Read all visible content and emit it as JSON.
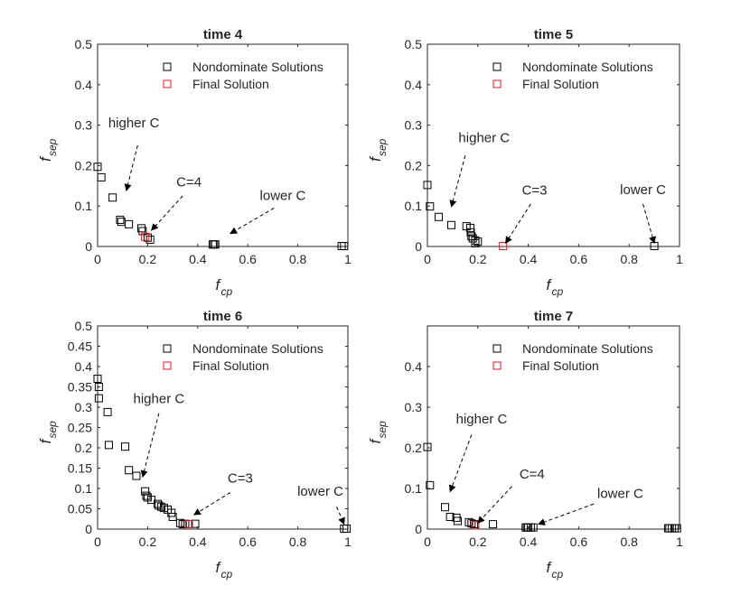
{
  "chart_data": [
    {
      "type": "scatter",
      "title": "time 4",
      "xlabel": "f",
      "xlabel_sub": "cp",
      "ylabel": "f",
      "ylabel_sub": "sep",
      "xlim": [
        0,
        1
      ],
      "ylim": [
        0,
        0.5
      ],
      "xticks": [
        "0",
        "0.2",
        "0.4",
        "0.6",
        "0.8",
        "1"
      ],
      "yticks": [
        "0",
        "0.1",
        "0.2",
        "0.3",
        "0.4",
        "0.5"
      ],
      "legend": [
        "Nondominate Solutions",
        "Final Solution"
      ],
      "series": [
        {
          "name": "Nondominate Solutions",
          "color": "#000000",
          "x": [
            0.0,
            0.015,
            0.06,
            0.09,
            0.095,
            0.125,
            0.175,
            0.18,
            0.2,
            0.21,
            0.46,
            0.465,
            0.47,
            0.975,
            0.985
          ],
          "y": [
            0.197,
            0.171,
            0.121,
            0.066,
            0.061,
            0.055,
            0.045,
            0.038,
            0.022,
            0.017,
            0.005,
            0.005,
            0.005,
            0.001,
            0.001
          ]
        },
        {
          "name": "Final Solution",
          "color": "#e31a1c",
          "x": [
            0.19
          ],
          "y": [
            0.024
          ]
        }
      ],
      "annotations": [
        {
          "text": "higher C",
          "text_at": [
            0.145,
            0.295
          ],
          "arrow_from": [
            0.16,
            0.25
          ],
          "arrow_to": [
            0.115,
            0.138
          ]
        },
        {
          "text": "C=4",
          "text_at": [
            0.365,
            0.148
          ],
          "arrow_from": [
            0.34,
            0.125
          ],
          "arrow_to": [
            0.215,
            0.04
          ]
        },
        {
          "text": "lower C",
          "text_at": [
            0.74,
            0.115
          ],
          "arrow_from": [
            0.705,
            0.095
          ],
          "arrow_to": [
            0.53,
            0.032
          ]
        }
      ]
    },
    {
      "type": "scatter",
      "title": "time 5",
      "xlabel": "f",
      "xlabel_sub": "cp",
      "ylabel": "f",
      "ylabel_sub": "sep",
      "xlim": [
        0,
        1
      ],
      "ylim": [
        0,
        0.5
      ],
      "xticks": [
        "0",
        "0.2",
        "0.4",
        "0.6",
        "0.8",
        "1"
      ],
      "yticks": [
        "0",
        "0.1",
        "0.2",
        "0.3",
        "0.4",
        "0.5"
      ],
      "legend": [
        "Nondominate Solutions",
        "Final Solution"
      ],
      "series": [
        {
          "name": "Nondominate Solutions",
          "color": "#000000",
          "x": [
            0.0,
            0.01,
            0.045,
            0.095,
            0.155,
            0.17,
            0.172,
            0.175,
            0.18,
            0.19,
            0.19,
            0.2,
            0.9
          ],
          "y": [
            0.152,
            0.099,
            0.073,
            0.053,
            0.05,
            0.046,
            0.035,
            0.025,
            0.02,
            0.015,
            0.008,
            0.012,
            0.001
          ]
        },
        {
          "name": "Final Solution",
          "color": "#e31a1c",
          "x": [
            0.3
          ],
          "y": [
            0.001
          ]
        }
      ],
      "annotations": [
        {
          "text": "higher C",
          "text_at": [
            0.225,
            0.258
          ],
          "arrow_from": [
            0.15,
            0.225
          ],
          "arrow_to": [
            0.095,
            0.098
          ]
        },
        {
          "text": "C=3",
          "text_at": [
            0.425,
            0.128
          ],
          "arrow_from": [
            0.41,
            0.105
          ],
          "arrow_to": [
            0.31,
            0.008
          ]
        },
        {
          "text": "lower C",
          "text_at": [
            0.855,
            0.13
          ],
          "arrow_from": [
            0.855,
            0.105
          ],
          "arrow_to": [
            0.9,
            0.008
          ]
        }
      ]
    },
    {
      "type": "scatter",
      "title": "time 6",
      "xlabel": "f",
      "xlabel_sub": "cp",
      "ylabel": "f",
      "ylabel_sub": "sep",
      "xlim": [
        0,
        1
      ],
      "ylim": [
        0,
        0.5
      ],
      "xticks": [
        "0",
        "0.2",
        "0.4",
        "0.6",
        "0.8",
        "1"
      ],
      "yticks": [
        "0",
        "0.05",
        "0.1",
        "0.15",
        "0.2",
        "0.25",
        "0.3",
        "0.35",
        "0.4",
        "0.45",
        "0.5"
      ],
      "legend": [
        "Nondominate Solutions",
        "Final Solution"
      ],
      "series": [
        {
          "name": "Nondominate Solutions",
          "color": "#000000",
          "x": [
            0.0,
            0.005,
            0.005,
            0.04,
            0.045,
            0.11,
            0.125,
            0.155,
            0.19,
            0.195,
            0.2,
            0.215,
            0.24,
            0.245,
            0.255,
            0.265,
            0.28,
            0.295,
            0.3,
            0.33,
            0.34,
            0.35,
            0.39,
            0.985,
            0.995
          ],
          "y": [
            0.37,
            0.35,
            0.322,
            0.288,
            0.207,
            0.203,
            0.145,
            0.131,
            0.093,
            0.082,
            0.078,
            0.072,
            0.062,
            0.058,
            0.055,
            0.052,
            0.048,
            0.04,
            0.03,
            0.015,
            0.012,
            0.013,
            0.013,
            0.001,
            0.001
          ]
        },
        {
          "name": "Final Solution",
          "color": "#e31a1c",
          "x": [
            0.365
          ],
          "y": [
            0.012
          ]
        }
      ],
      "annotations": [
        {
          "text": "higher C",
          "text_at": [
            0.245,
            0.31
          ],
          "arrow_from": [
            0.245,
            0.285
          ],
          "arrow_to": [
            0.18,
            0.128
          ]
        },
        {
          "text": "C=3",
          "text_at": [
            0.57,
            0.115
          ],
          "arrow_from": [
            0.53,
            0.09
          ],
          "arrow_to": [
            0.385,
            0.035
          ]
        },
        {
          "text": "lower C",
          "text_at": [
            0.89,
            0.082
          ],
          "arrow_from": [
            0.955,
            0.055
          ],
          "arrow_to": [
            0.985,
            0.012
          ]
        }
      ]
    },
    {
      "type": "scatter",
      "title": "time 7",
      "xlabel": "f",
      "xlabel_sub": "cp",
      "ylabel": "f",
      "ylabel_sub": "sep",
      "xlim": [
        0,
        1
      ],
      "ylim": [
        0,
        0.5
      ],
      "xticks": [
        "0",
        "0.2",
        "0.4",
        "0.6",
        "0.8",
        "1"
      ],
      "yticks": [
        "0",
        "0.1",
        "0.2",
        "0.3",
        "0.4"
      ],
      "legend": [
        "Nondominate Solutions",
        "Final Solution"
      ],
      "series": [
        {
          "name": "Nondominate Solutions",
          "color": "#000000",
          "x": [
            0.0,
            0.01,
            0.07,
            0.09,
            0.115,
            0.12,
            0.165,
            0.175,
            0.185,
            0.26,
            0.39,
            0.395,
            0.4,
            0.41,
            0.42,
            0.955,
            0.96,
            0.97,
            0.98,
            0.99
          ],
          "y": [
            0.202,
            0.108,
            0.054,
            0.03,
            0.028,
            0.02,
            0.017,
            0.014,
            0.012,
            0.012,
            0.004,
            0.004,
            0.004,
            0.004,
            0.004,
            0.002,
            0.002,
            0.002,
            0.002,
            0.002
          ]
        },
        {
          "name": "Final Solution",
          "color": "#e31a1c",
          "x": [
            0.19
          ],
          "y": [
            0.009
          ]
        }
      ],
      "annotations": [
        {
          "text": "higher C",
          "text_at": [
            0.215,
            0.26
          ],
          "arrow_from": [
            0.175,
            0.232
          ],
          "arrow_to": [
            0.09,
            0.092
          ]
        },
        {
          "text": "C=4",
          "text_at": [
            0.415,
            0.125
          ],
          "arrow_from": [
            0.335,
            0.105
          ],
          "arrow_to": [
            0.2,
            0.015
          ]
        },
        {
          "text": "lower C",
          "text_at": [
            0.765,
            0.077
          ],
          "arrow_from": [
            0.66,
            0.062
          ],
          "arrow_to": [
            0.44,
            0.012
          ]
        }
      ]
    }
  ]
}
